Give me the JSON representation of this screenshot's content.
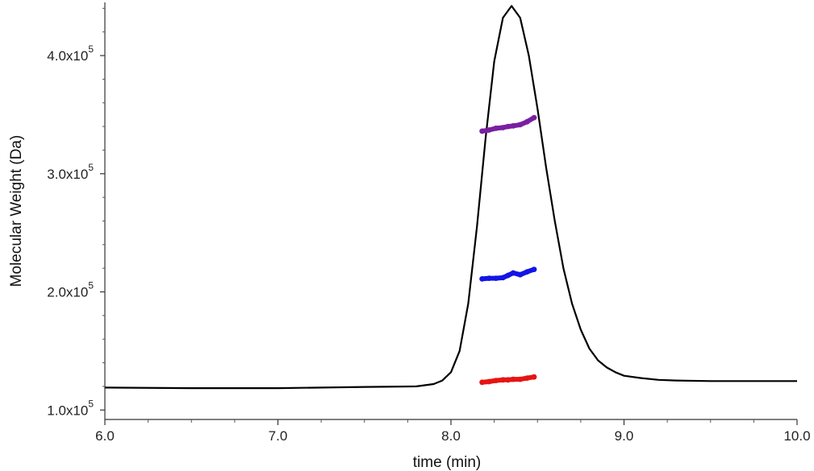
{
  "chart_data": {
    "type": "line",
    "title": "",
    "xlabel": "time (min)",
    "ylabel": "Molecular Weight (Da)",
    "xlim": [
      6.0,
      10.0
    ],
    "ylim": [
      92000.0,
      445000.0
    ],
    "grid": false,
    "x_ticks": [
      {
        "value": 6.0,
        "label": "6.0"
      },
      {
        "value": 7.0,
        "label": "7.0"
      },
      {
        "value": 8.0,
        "label": "8.0"
      },
      {
        "value": 9.0,
        "label": "9.0"
      },
      {
        "value": 10.0,
        "label": "10.0"
      }
    ],
    "y_ticks": [
      {
        "value": 100000,
        "mantissa": "1.0x10",
        "exponent": "5"
      },
      {
        "value": 200000,
        "mantissa": "2.0x10",
        "exponent": "5"
      },
      {
        "value": 300000,
        "mantissa": "3.0x10",
        "exponent": "5"
      },
      {
        "value": 400000,
        "mantissa": "4.0x10",
        "exponent": "5"
      }
    ],
    "series": [
      {
        "kind": "signal-trace",
        "color": "#000000",
        "x": [
          6.0,
          6.5,
          7.0,
          7.5,
          7.8,
          7.9,
          7.95,
          8.0,
          8.05,
          8.1,
          8.15,
          8.2,
          8.25,
          8.3,
          8.35,
          8.4,
          8.45,
          8.5,
          8.55,
          8.6,
          8.65,
          8.7,
          8.75,
          8.8,
          8.85,
          8.9,
          8.95,
          9.0,
          9.1,
          9.2,
          9.3,
          9.5,
          10.0
        ],
        "y": [
          119000,
          118500,
          118500,
          119500,
          120000,
          122000,
          125000,
          132000,
          150000,
          190000,
          255000,
          330000,
          395000,
          432000,
          442000,
          432000,
          400000,
          355000,
          305000,
          260000,
          220000,
          190000,
          168000,
          152000,
          142000,
          136000,
          132000,
          129000,
          127000,
          125500,
          125000,
          124500,
          124500
        ]
      },
      {
        "kind": "mw-points",
        "color": "#7a1fa2",
        "x": [
          8.18,
          8.22,
          8.26,
          8.3,
          8.33,
          8.36,
          8.4,
          8.44,
          8.48
        ],
        "y": [
          336000,
          337000,
          338500,
          339000,
          340000,
          340500,
          341500,
          344000,
          347500
        ]
      },
      {
        "kind": "mw-points",
        "color": "#1414e6",
        "x": [
          8.18,
          8.22,
          8.26,
          8.3,
          8.33,
          8.36,
          8.4,
          8.44,
          8.48
        ],
        "y": [
          211000,
          211500,
          211500,
          212000,
          214000,
          216000,
          214500,
          217000,
          219000
        ]
      },
      {
        "kind": "mw-points",
        "color": "#e61414",
        "x": [
          8.18,
          8.22,
          8.26,
          8.3,
          8.33,
          8.36,
          8.4,
          8.44,
          8.48
        ],
        "y": [
          123500,
          124000,
          125000,
          125500,
          125500,
          126000,
          126000,
          127000,
          128000
        ]
      }
    ]
  }
}
